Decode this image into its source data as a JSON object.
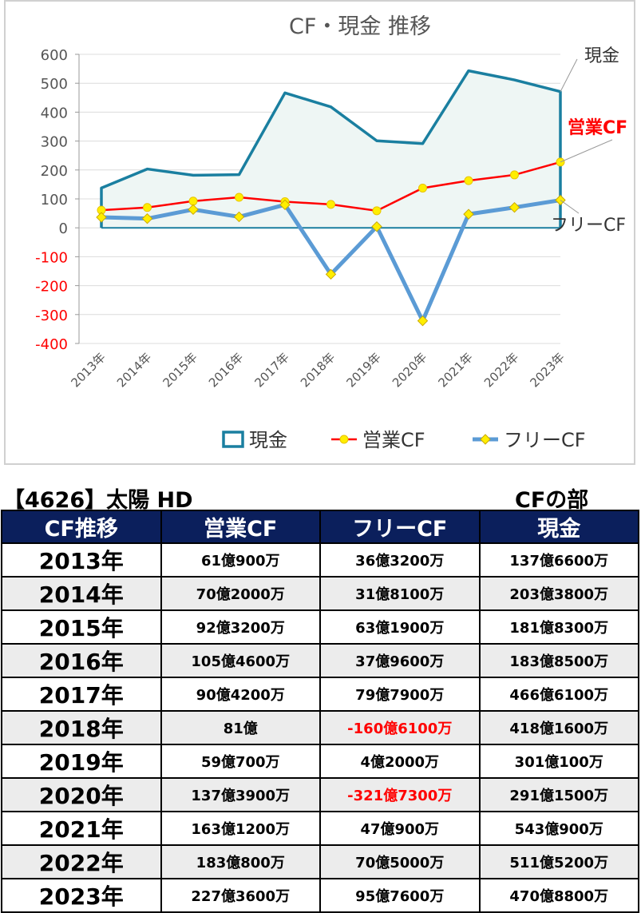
{
  "chart_data": {
    "type": "line",
    "title": "CF・現金 推移",
    "categories": [
      "2013年",
      "2014年",
      "2015年",
      "2016年",
      "2017年",
      "2018年",
      "2019年",
      "2020年",
      "2021年",
      "2022年",
      "2023年"
    ],
    "ylim": [
      -400,
      600
    ],
    "yticks": [
      600,
      500,
      400,
      300,
      200,
      100,
      0,
      -100,
      -200,
      -300,
      -400
    ],
    "grid": true,
    "legend_position": "bottom",
    "series": [
      {
        "name": "現金",
        "style": "area",
        "color": "#1a7fa0",
        "fill": "#eef6f4",
        "values": [
          137.66,
          203.38,
          181.83,
          183.85,
          466.61,
          418.16,
          301.01,
          291.15,
          543.09,
          511.52,
          470.88
        ]
      },
      {
        "name": "営業CF",
        "style": "line-marker",
        "color": "#ff0000",
        "marker_color": "#ffee00",
        "values": [
          61.09,
          70.2,
          92.32,
          105.46,
          90.42,
          81.0,
          59.07,
          137.39,
          163.12,
          183.08,
          227.36
        ]
      },
      {
        "name": "フリーCF",
        "style": "line-marker",
        "color": "#5b9bd5",
        "marker_color": "#ffee00",
        "values": [
          36.32,
          31.81,
          63.19,
          37.96,
          79.79,
          -160.61,
          4.2,
          -321.73,
          47.09,
          70.5,
          95.76
        ]
      }
    ],
    "callouts": [
      "現金",
      "営業CF",
      "フリーCF"
    ]
  },
  "header": {
    "ticker": "【4626】太陽 HD",
    "section": "CFの部"
  },
  "table": {
    "columns": [
      "CF推移",
      "営業CF",
      "フリーCF",
      "現金"
    ],
    "rows": [
      {
        "year": "2013年",
        "op": "61億900万",
        "free": "36億3200万",
        "cash": "137億6600万"
      },
      {
        "year": "2014年",
        "op": "70億2000万",
        "free": "31億8100万",
        "cash": "203億3800万"
      },
      {
        "year": "2015年",
        "op": "92億3200万",
        "free": "63億1900万",
        "cash": "181億8300万"
      },
      {
        "year": "2016年",
        "op": "105億4600万",
        "free": "37億9600万",
        "cash": "183億8500万"
      },
      {
        "year": "2017年",
        "op": "90億4200万",
        "free": "79億7900万",
        "cash": "466億6100万"
      },
      {
        "year": "2018年",
        "op": "81億",
        "free": "-160億6100万",
        "cash": "418億1600万"
      },
      {
        "year": "2019年",
        "op": "59億700万",
        "free": "4億2000万",
        "cash": "301億100万"
      },
      {
        "year": "2020年",
        "op": "137億3900万",
        "free": "-321億7300万",
        "cash": "291億1500万"
      },
      {
        "year": "2021年",
        "op": "163億1200万",
        "free": "47億900万",
        "cash": "543億900万"
      },
      {
        "year": "2022年",
        "op": "183億800万",
        "free": "70億5000万",
        "cash": "511億5200万"
      },
      {
        "year": "2023年",
        "op": "227億3600万",
        "free": "95億7600万",
        "cash": "470億8800万"
      }
    ]
  }
}
